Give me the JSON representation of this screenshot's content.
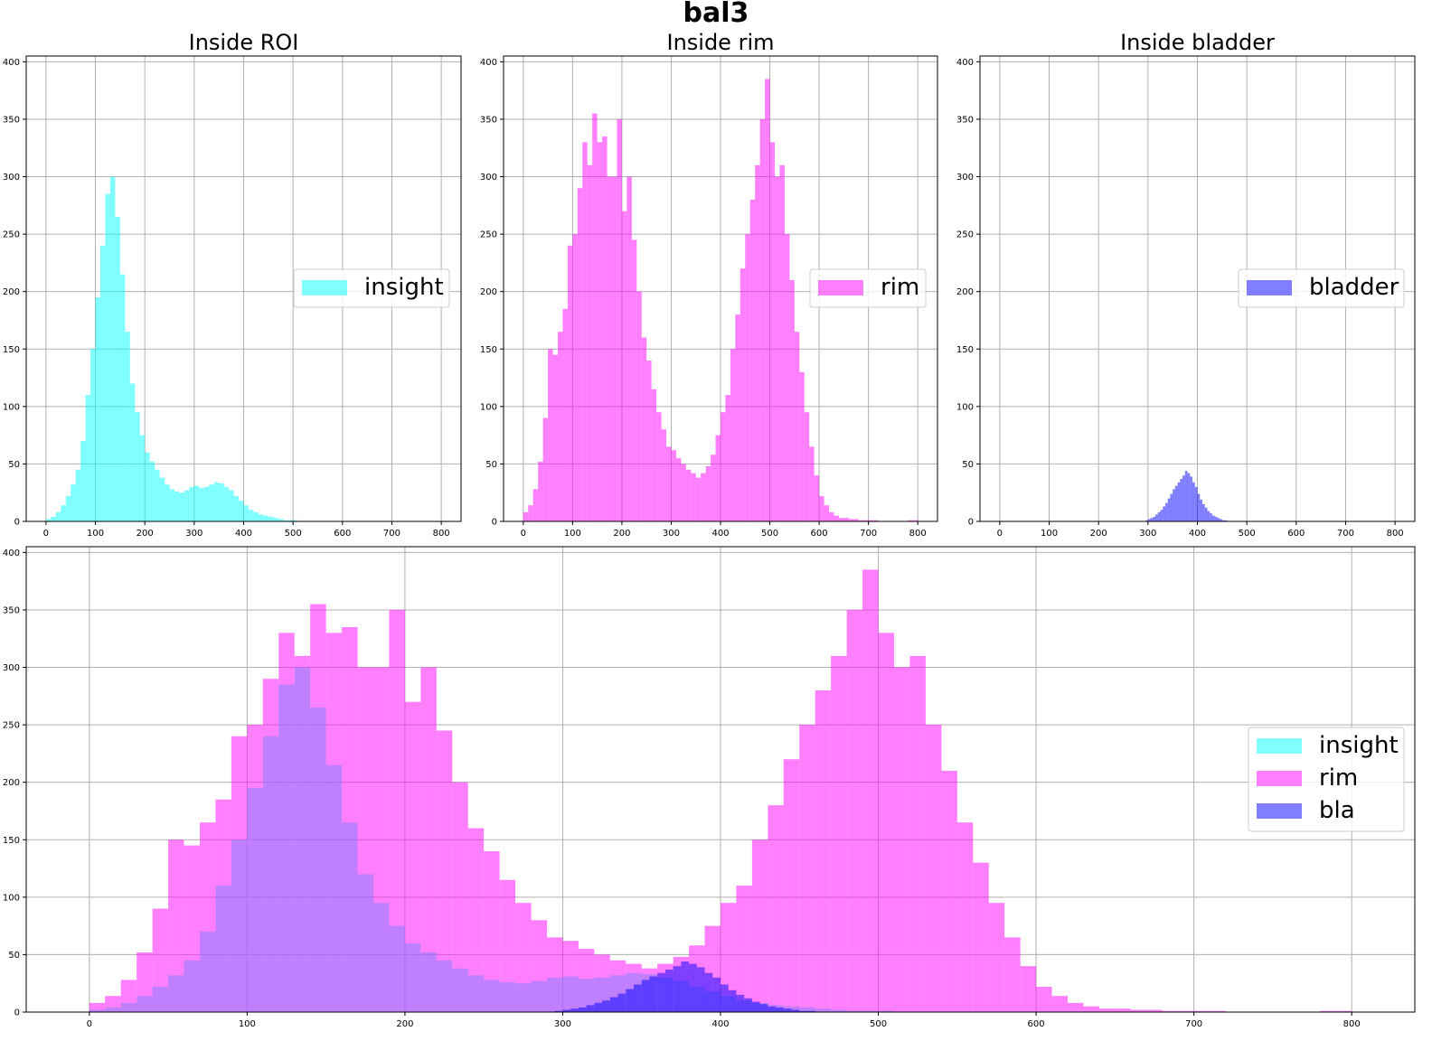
{
  "figure_title": "bal3",
  "colors": {
    "insight": "#00ffff",
    "rim": "#ff00ff",
    "bladder": "#0000ff"
  },
  "chart_data": [
    {
      "type": "histogram",
      "title": "Inside ROI",
      "xlim": [
        -40,
        840
      ],
      "ylim": [
        0,
        405
      ],
      "xticks": [
        0,
        100,
        200,
        300,
        400,
        500,
        600,
        700,
        800
      ],
      "yticks": [
        0,
        50,
        100,
        150,
        200,
        250,
        300,
        350,
        400
      ],
      "grid": true,
      "legend_position": "center-right",
      "series": [
        {
          "name": "insight",
          "color": "#00ffff",
          "alpha": 0.5,
          "bin_centers": [
            5,
            15,
            25,
            35,
            45,
            55,
            65,
            75,
            85,
            95,
            105,
            115,
            125,
            135,
            145,
            155,
            165,
            175,
            185,
            195,
            205,
            215,
            225,
            235,
            245,
            255,
            265,
            275,
            285,
            295,
            305,
            315,
            325,
            335,
            345,
            355,
            365,
            375,
            385,
            395,
            405,
            415,
            425,
            435,
            445,
            455,
            465,
            475,
            485,
            495,
            505
          ],
          "counts": [
            2,
            4,
            8,
            14,
            22,
            32,
            45,
            70,
            110,
            150,
            195,
            240,
            285,
            300,
            265,
            215,
            165,
            120,
            95,
            75,
            60,
            52,
            45,
            38,
            32,
            28,
            26,
            25,
            27,
            30,
            31,
            29,
            30,
            32,
            34,
            33,
            30,
            27,
            22,
            18,
            14,
            10,
            8,
            6,
            5,
            4,
            3,
            2,
            1,
            1,
            1
          ]
        }
      ]
    },
    {
      "type": "histogram",
      "title": "Inside rim",
      "xlim": [
        -40,
        840
      ],
      "ylim": [
        0,
        405
      ],
      "xticks": [
        0,
        100,
        200,
        300,
        400,
        500,
        600,
        700,
        800
      ],
      "yticks": [
        0,
        50,
        100,
        150,
        200,
        250,
        300,
        350,
        400
      ],
      "grid": true,
      "legend_position": "center-right",
      "series": [
        {
          "name": "rim",
          "color": "#ff00ff",
          "alpha": 0.5,
          "bin_centers": [
            5,
            15,
            25,
            35,
            45,
            55,
            65,
            75,
            85,
            95,
            105,
            115,
            125,
            135,
            145,
            155,
            165,
            175,
            185,
            195,
            205,
            215,
            225,
            235,
            245,
            255,
            265,
            275,
            285,
            295,
            305,
            315,
            325,
            335,
            345,
            355,
            365,
            375,
            385,
            395,
            405,
            415,
            425,
            435,
            445,
            455,
            465,
            475,
            485,
            495,
            505,
            515,
            525,
            535,
            545,
            555,
            565,
            575,
            585,
            595,
            605,
            615,
            625,
            635,
            645,
            655,
            665,
            675,
            685,
            695,
            705,
            715,
            725,
            735,
            745,
            755,
            765,
            775,
            785,
            795
          ],
          "counts": [
            8,
            14,
            28,
            52,
            90,
            150,
            145,
            165,
            185,
            240,
            250,
            290,
            330,
            310,
            355,
            330,
            335,
            300,
            300,
            350,
            270,
            300,
            245,
            200,
            160,
            140,
            115,
            95,
            80,
            65,
            62,
            55,
            50,
            45,
            42,
            38,
            42,
            48,
            58,
            75,
            95,
            110,
            150,
            180,
            220,
            250,
            280,
            310,
            350,
            385,
            330,
            300,
            310,
            250,
            210,
            165,
            130,
            95,
            65,
            40,
            22,
            14,
            8,
            5,
            3,
            3,
            2,
            2,
            1,
            1,
            1,
            1,
            0,
            0,
            0,
            0,
            0,
            0,
            1,
            1
          ]
        }
      ]
    },
    {
      "type": "histogram",
      "title": "Inside bladder",
      "xlim": [
        -40,
        840
      ],
      "ylim": [
        0,
        405
      ],
      "xticks": [
        0,
        100,
        200,
        300,
        400,
        500,
        600,
        700,
        800
      ],
      "yticks": [
        0,
        50,
        100,
        150,
        200,
        250,
        300,
        350,
        400
      ],
      "grid": true,
      "legend_position": "center-right",
      "series": [
        {
          "name": "bladder",
          "color": "#0000ff",
          "alpha": 0.5,
          "bin_centers": [
            297.5,
            302.5,
            307.5,
            312.5,
            317.5,
            322.5,
            327.5,
            332.5,
            337.5,
            342.5,
            347.5,
            352.5,
            357.5,
            362.5,
            367.5,
            372.5,
            377.5,
            382.5,
            387.5,
            392.5,
            397.5,
            402.5,
            407.5,
            412.5,
            417.5,
            422.5,
            427.5,
            432.5,
            437.5,
            442.5,
            447.5,
            452.5,
            457.5
          ],
          "counts": [
            1,
            2,
            3,
            4,
            6,
            8,
            10,
            13,
            16,
            20,
            24,
            28,
            31,
            34,
            37,
            40,
            44,
            42,
            39,
            34,
            30,
            24,
            19,
            15,
            12,
            9,
            7,
            5,
            4,
            3,
            2,
            1,
            1
          ]
        }
      ]
    },
    {
      "type": "histogram",
      "title": "",
      "xlim": [
        -40,
        840
      ],
      "ylim": [
        0,
        405
      ],
      "xticks": [
        0,
        100,
        200,
        300,
        400,
        500,
        600,
        700,
        800
      ],
      "yticks": [
        0,
        50,
        100,
        150,
        200,
        250,
        300,
        350,
        400
      ],
      "grid": true,
      "legend_position": "center-right",
      "series": [
        {
          "name": "insight",
          "color": "#00ffff",
          "alpha": 0.5,
          "bin_centers": [
            5,
            15,
            25,
            35,
            45,
            55,
            65,
            75,
            85,
            95,
            105,
            115,
            125,
            135,
            145,
            155,
            165,
            175,
            185,
            195,
            205,
            215,
            225,
            235,
            245,
            255,
            265,
            275,
            285,
            295,
            305,
            315,
            325,
            335,
            345,
            355,
            365,
            375,
            385,
            395,
            405,
            415,
            425,
            435,
            445,
            455,
            465,
            475,
            485,
            495,
            505
          ],
          "counts": [
            2,
            4,
            8,
            14,
            22,
            32,
            45,
            70,
            110,
            150,
            195,
            240,
            285,
            300,
            265,
            215,
            165,
            120,
            95,
            75,
            60,
            52,
            45,
            38,
            32,
            28,
            26,
            25,
            27,
            30,
            31,
            29,
            30,
            32,
            34,
            33,
            30,
            27,
            22,
            18,
            14,
            10,
            8,
            6,
            5,
            4,
            3,
            2,
            1,
            1,
            1
          ]
        },
        {
          "name": "rim",
          "color": "#ff00ff",
          "alpha": 0.5,
          "bin_centers": [
            5,
            15,
            25,
            35,
            45,
            55,
            65,
            75,
            85,
            95,
            105,
            115,
            125,
            135,
            145,
            155,
            165,
            175,
            185,
            195,
            205,
            215,
            225,
            235,
            245,
            255,
            265,
            275,
            285,
            295,
            305,
            315,
            325,
            335,
            345,
            355,
            365,
            375,
            385,
            395,
            405,
            415,
            425,
            435,
            445,
            455,
            465,
            475,
            485,
            495,
            505,
            515,
            525,
            535,
            545,
            555,
            565,
            575,
            585,
            595,
            605,
            615,
            625,
            635,
            645,
            655,
            665,
            675,
            685,
            695,
            705,
            715,
            725,
            735,
            745,
            755,
            765,
            775,
            785,
            795
          ],
          "counts": [
            8,
            14,
            28,
            52,
            90,
            150,
            145,
            165,
            185,
            240,
            250,
            290,
            330,
            310,
            355,
            330,
            335,
            300,
            300,
            350,
            270,
            300,
            245,
            200,
            160,
            140,
            115,
            95,
            80,
            65,
            62,
            55,
            50,
            45,
            42,
            38,
            42,
            48,
            58,
            75,
            95,
            110,
            150,
            180,
            220,
            250,
            280,
            310,
            350,
            385,
            330,
            300,
            310,
            250,
            210,
            165,
            130,
            95,
            65,
            40,
            22,
            14,
            8,
            5,
            3,
            3,
            2,
            2,
            1,
            1,
            1,
            1,
            0,
            0,
            0,
            0,
            0,
            0,
            1,
            1
          ]
        },
        {
          "name": "bla",
          "color": "#0000ff",
          "alpha": 0.5,
          "bin_centers": [
            297.5,
            302.5,
            307.5,
            312.5,
            317.5,
            322.5,
            327.5,
            332.5,
            337.5,
            342.5,
            347.5,
            352.5,
            357.5,
            362.5,
            367.5,
            372.5,
            377.5,
            382.5,
            387.5,
            392.5,
            397.5,
            402.5,
            407.5,
            412.5,
            417.5,
            422.5,
            427.5,
            432.5,
            437.5,
            442.5,
            447.5,
            452.5,
            457.5
          ],
          "counts": [
            1,
            2,
            3,
            4,
            6,
            8,
            10,
            13,
            16,
            20,
            24,
            28,
            31,
            34,
            37,
            40,
            44,
            42,
            39,
            34,
            30,
            24,
            19,
            15,
            12,
            9,
            7,
            5,
            4,
            3,
            2,
            1,
            1
          ]
        }
      ]
    }
  ]
}
